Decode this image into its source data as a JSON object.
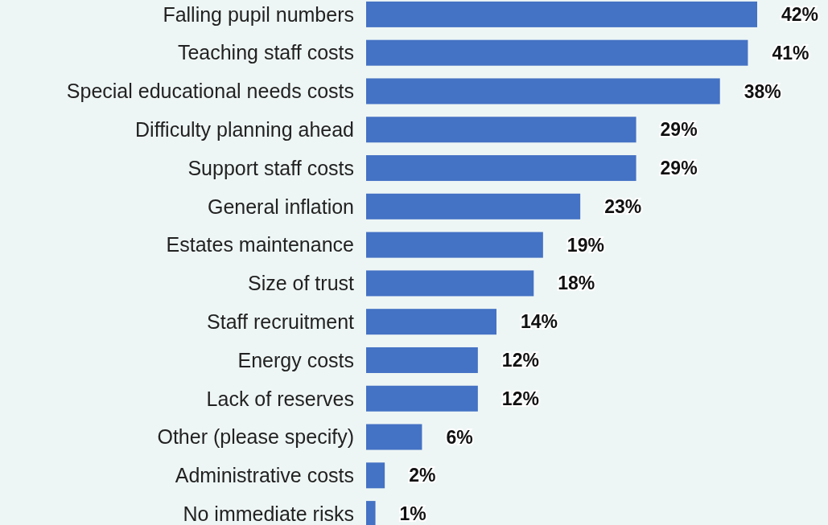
{
  "chart_data": {
    "type": "bar",
    "orientation": "horizontal",
    "categories": [
      "Falling pupil numbers",
      "Teaching staff costs",
      "Special educational needs costs",
      "Difficulty planning ahead",
      "Support staff costs",
      "General inflation",
      "Estates maintenance",
      "Size of trust",
      "Staff recruitment",
      "Energy costs",
      "Lack of reserves",
      "Other (please specify)",
      "Administrative costs",
      "No immediate risks"
    ],
    "values": [
      42,
      41,
      38,
      29,
      29,
      23,
      19,
      18,
      14,
      12,
      12,
      6,
      2,
      1
    ],
    "value_labels": [
      "42%",
      "41%",
      "38%",
      "29%",
      "29%",
      "23%",
      "19%",
      "18%",
      "14%",
      "12%",
      "12%",
      "6%",
      "2%",
      "1%"
    ],
    "color": "#4472c4"
  }
}
